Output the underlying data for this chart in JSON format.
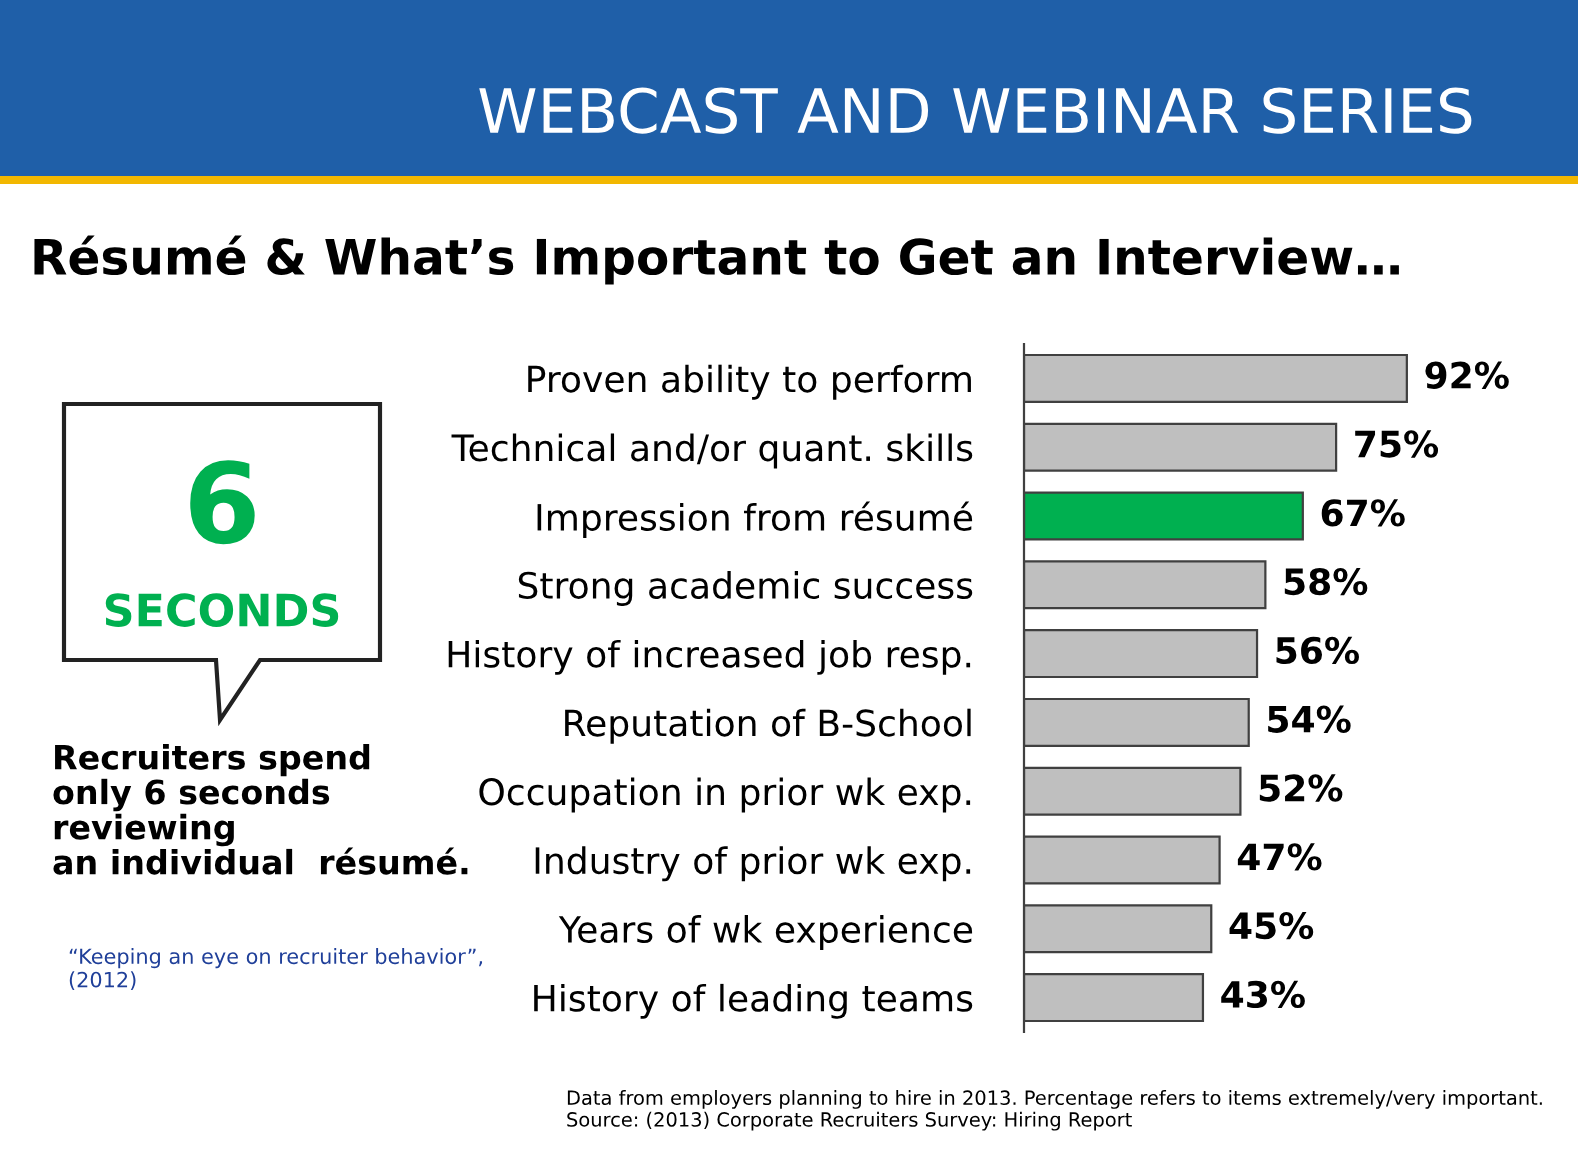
{
  "chart_data": {
    "type": "bar",
    "orientation": "horizontal",
    "title": "Résumé & What’s Important to Get an Interview…",
    "categories": [
      "Proven ability to perform",
      "Technical and/or quant. skills",
      "Impression from résumé",
      "Strong academic success",
      "History of increased job resp.",
      "Reputation of B-School",
      "Occupation in prior wk exp.",
      "Industry of prior wk exp.",
      "Years of wk experience",
      "History of leading teams"
    ],
    "values": [
      92,
      75,
      67,
      58,
      56,
      54,
      52,
      47,
      45,
      43
    ],
    "colors": [
      "#bfbfbf",
      "#bfbfbf",
      "#00b050",
      "#bfbfbf",
      "#bfbfbf",
      "#bfbfbf",
      "#bfbfbf",
      "#bfbfbf",
      "#bfbfbf",
      "#bfbfbf"
    ],
    "value_labels": [
      "92%",
      "75%",
      "67%",
      "58%",
      "56%",
      "54%",
      "52%",
      "47%",
      "45%",
      "43%"
    ],
    "tick_labels": "y",
    "grid": false,
    "legend": false,
    "annotations": [
      "WEBCAST AND WEBINAR SERIES",
      "6",
      "SECONDS",
      "Recruiters spend\nonly 6 seconds\nreviewing\nan individual  résumé.",
      "“Keeping an eye on recruiter behavior”,\n(2012)",
      "Data from employers planning to hire in 2013. Percentage refers to items extremely/very important.\nSource: (2013) Corporate Recruiters Survey: Hiring Report"
    ]
  }
}
